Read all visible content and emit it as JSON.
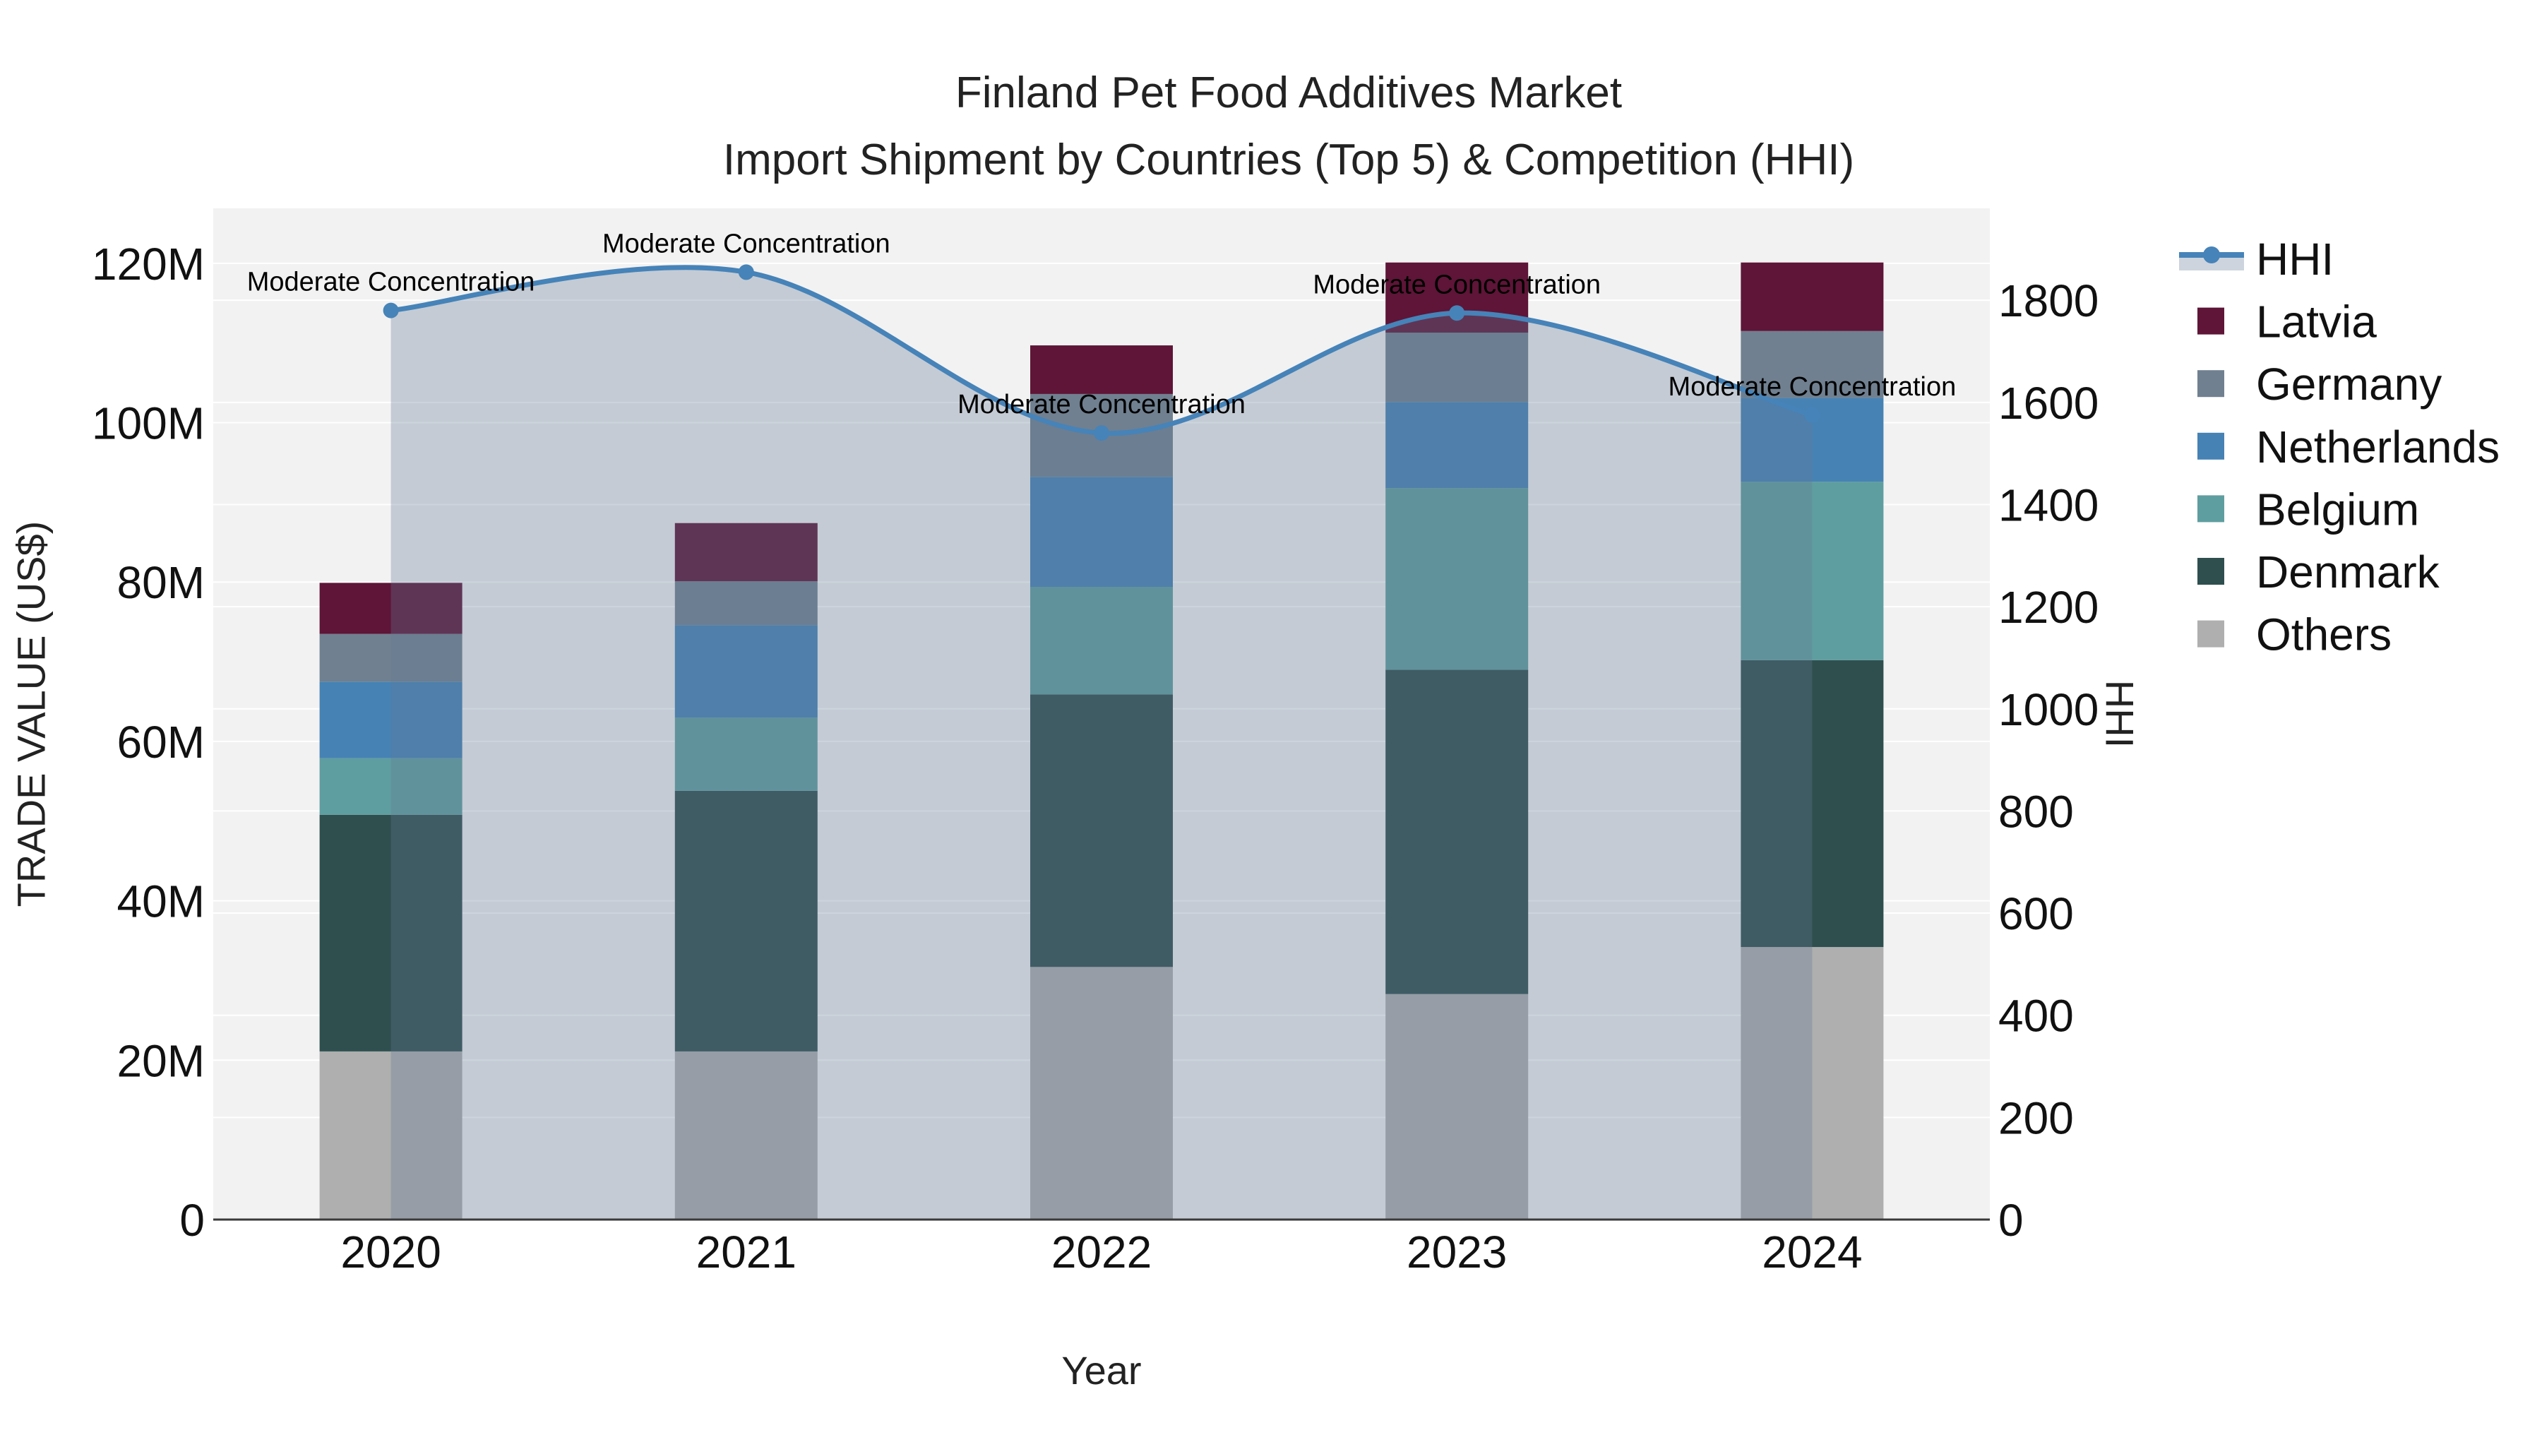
{
  "title": {
    "line1": "Finland Pet Food Additives Market",
    "line2": "Import Shipment by Countries (Top 5) & Competition (HHI)"
  },
  "axis_titles": {
    "left": "TRADE VALUE (US$)",
    "right": "HHI",
    "x": "Year"
  },
  "colors": {
    "plot_background": "#F2F2F2",
    "gridline": "#FFFFFF",
    "axis_line": "#3A3A3A",
    "text": "#111111",
    "hhi_line": "#4683B8",
    "hhi_area_fill": "rgba(100,120,150,0.32)"
  },
  "chart_data": {
    "type": "bar+line",
    "title": "Finland Pet Food Additives Market — Import Shipment by Countries (Top 5) & Competition (HHI)",
    "categories": [
      "2020",
      "2021",
      "2022",
      "2023",
      "2024"
    ],
    "stack_order": "bottom to top",
    "series": [
      {
        "name": "Others",
        "color": "#AEAFAE",
        "values": [
          21.1,
          21.1,
          31.7,
          28.3,
          34.2
        ]
      },
      {
        "name": "Denmark",
        "color": "#2F4F4F",
        "values": [
          29.7,
          32.7,
          34.2,
          40.7,
          36.0
        ]
      },
      {
        "name": "Belgium",
        "color": "#5F9EA0",
        "values": [
          7.1,
          9.2,
          13.5,
          22.8,
          22.4
        ]
      },
      {
        "name": "Netherlands",
        "color": "#4682B4",
        "values": [
          9.6,
          11.6,
          13.8,
          10.8,
          10.5
        ]
      },
      {
        "name": "Germany",
        "color": "#708090",
        "values": [
          6.0,
          5.5,
          10.4,
          8.7,
          8.4
        ]
      },
      {
        "name": "Latvia",
        "color": "#5E1537",
        "values": [
          6.4,
          7.3,
          6.1,
          8.8,
          8.6
        ]
      }
    ],
    "bar_totals_musd": [
      79.9,
      87.4,
      109.7,
      120.1,
      120.1
    ],
    "line_series": {
      "name": "HHI",
      "color": "#4683B8",
      "area_fill": "rgba(100,120,150,0.32)",
      "yaxis": "right",
      "values": [
        1780,
        1855,
        1540,
        1775,
        1575
      ]
    },
    "annotations": [
      "Moderate Concentration",
      "Moderate Concentration",
      "Moderate Concentration",
      "Moderate Concentration",
      "Moderate Concentration"
    ],
    "left_axis": {
      "unit": "M US$",
      "ticks": [
        0,
        20,
        40,
        60,
        80,
        100,
        120
      ],
      "labels": [
        "0",
        "20M",
        "40M",
        "60M",
        "80M",
        "100M",
        "120M"
      ],
      "range": [
        0,
        126.9
      ],
      "grid": true
    },
    "right_axis": {
      "unit": "HHI",
      "ticks": [
        0,
        200,
        400,
        600,
        800,
        1000,
        1200,
        1400,
        1600,
        1800
      ],
      "labels": [
        "0",
        "200",
        "400",
        "600",
        "800",
        "1000",
        "1200",
        "1400",
        "1600",
        "1800"
      ],
      "range": [
        0,
        1980
      ],
      "grid": true
    },
    "legend_position": "right",
    "legend": [
      {
        "label": "HHI",
        "type": "line"
      },
      {
        "label": "Latvia",
        "type": "swatch",
        "color": "#5E1537"
      },
      {
        "label": "Germany",
        "type": "swatch",
        "color": "#708090"
      },
      {
        "label": "Netherlands",
        "type": "swatch",
        "color": "#4682B4"
      },
      {
        "label": "Belgium",
        "type": "swatch",
        "color": "#5F9EA0"
      },
      {
        "label": "Denmark",
        "type": "swatch",
        "color": "#2F4F4F"
      },
      {
        "label": "Others",
        "type": "swatch",
        "color": "#AEAFAE"
      }
    ]
  }
}
